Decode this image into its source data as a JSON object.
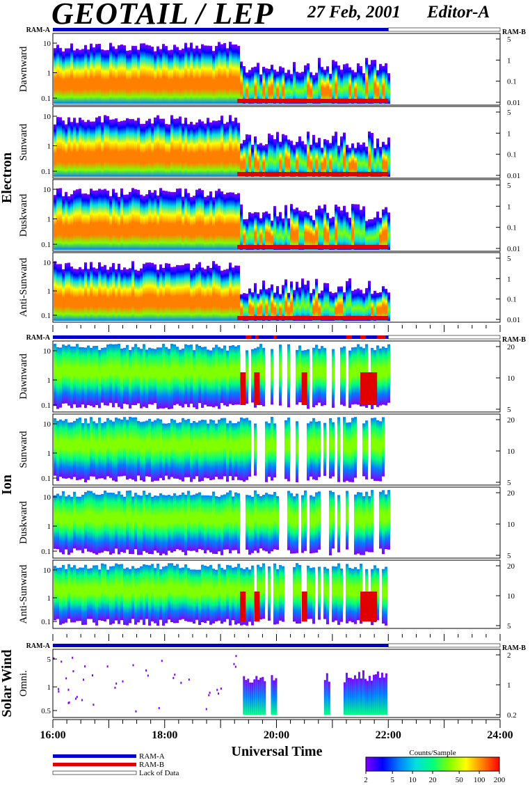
{
  "header": {
    "instrument": "GEOTAIL / LEP",
    "date": "27 Feb, 2001",
    "editor": "Editor-A"
  },
  "ram_labels": {
    "left": "RAM-A",
    "right": "RAM-B"
  },
  "groups": [
    {
      "name": "Electron"
    },
    {
      "name": "Ion"
    },
    {
      "name": "Solar Wind"
    }
  ],
  "colors": {
    "ram_a": "#0000c8",
    "ram_b": "#e00000",
    "lack_of_data": "#ffffff",
    "colorbar_stops": [
      "#8000ff",
      "#0000ff",
      "#0080ff",
      "#00e0e0",
      "#00ff80",
      "#80ff00",
      "#ffff00",
      "#ff8000",
      "#ff0000"
    ]
  },
  "chart_data": [
    {
      "type": "heatmap",
      "group": "Electron",
      "ylabel": "Dawnward",
      "left_ticks": [
        "10",
        "1",
        "0.1"
      ],
      "right_ticks": [
        "5",
        "1",
        "0.1",
        "0.01"
      ],
      "data_end": "22:00",
      "dominant_level": "high (orange-red core) 16:00-19:20, patchy after 19:20"
    },
    {
      "type": "heatmap",
      "group": "Electron",
      "ylabel": "Sunward",
      "left_ticks": [
        "10",
        "1",
        "0.1"
      ],
      "right_ticks": [
        "5",
        "1",
        "0.1",
        "0.01"
      ],
      "data_end": "22:00",
      "dominant_level": "high 16:00-19:20, patchy after 19:20"
    },
    {
      "type": "heatmap",
      "group": "Electron",
      "ylabel": "Duskward",
      "left_ticks": [
        "10",
        "1",
        "0.1"
      ],
      "right_ticks": [
        "5",
        "1",
        "0.1",
        "0.01"
      ],
      "data_end": "22:00",
      "dominant_level": "high 16:00-19:20, patchy after 19:20"
    },
    {
      "type": "heatmap",
      "group": "Electron",
      "ylabel": "Anti-Sunward",
      "left_ticks": [
        "10",
        "1",
        "0.1"
      ],
      "right_ticks": [
        "5",
        "1",
        "0.1",
        "0.01"
      ],
      "data_end": "22:00",
      "dominant_level": "high 16:00-19:20, patchy after 19:20"
    },
    {
      "type": "heatmap",
      "group": "Ion",
      "ylabel": "Dawnward",
      "left_ticks": [
        "10",
        "1",
        "0.1"
      ],
      "right_ticks": [
        "20",
        "10",
        "5"
      ],
      "data_end": "22:00",
      "dominant_level": "green-yellow 16:00-19:20, red bursts after 19:20"
    },
    {
      "type": "heatmap",
      "group": "Ion",
      "ylabel": "Sunward",
      "left_ticks": [
        "10",
        "1",
        "0.1"
      ],
      "right_ticks": [
        "20",
        "10",
        "5"
      ],
      "data_end": "22:00",
      "dominant_level": "green-yellow 16:00-19:20, gaps after 19:20"
    },
    {
      "type": "heatmap",
      "group": "Ion",
      "ylabel": "Duskward",
      "left_ticks": [
        "10",
        "1",
        "0.1"
      ],
      "right_ticks": [
        "20",
        "10",
        "5"
      ],
      "data_end": "22:00",
      "dominant_level": "green-yellow 16:00-19:20, gaps after 19:20"
    },
    {
      "type": "heatmap",
      "group": "Ion",
      "ylabel": "Anti-Sunward",
      "left_ticks": [
        "10",
        "1",
        "0.1"
      ],
      "right_ticks": [
        "20",
        "10",
        "5"
      ],
      "data_end": "22:00",
      "dominant_level": "green-yellow 16:00-19:20, red bursts after 19:20"
    },
    {
      "type": "heatmap",
      "group": "Solar Wind",
      "ylabel": "Omni.",
      "left_ticks": [
        "5",
        "1",
        "0.5"
      ],
      "right_ticks": [
        "2",
        "1",
        "0.2"
      ],
      "data_end": "22:00",
      "dominant_level": "sparse isolated points 16:00-19:20, bursts 19:20-22:00"
    }
  ],
  "xaxis": {
    "label": "Universal Time",
    "ticks": [
      "16:00",
      "18:00",
      "20:00",
      "22:00",
      "24:00"
    ],
    "range": [
      "16:00",
      "24:00"
    ]
  },
  "legend": {
    "ram_a": "RAM-A",
    "ram_b": "RAM-B",
    "lack": "Lack of Data"
  },
  "colorbar": {
    "title": "Counts/Sample",
    "ticks": [
      "2",
      "5",
      "10",
      "20",
      "50",
      "100",
      "200"
    ]
  }
}
